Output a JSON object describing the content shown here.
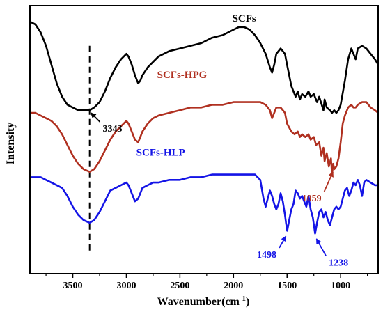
{
  "chart_data": {
    "type": "line",
    "title": "",
    "xlabel": "Wavenumber(cm",
    "xlabel_superscript": "-1",
    "xlabel_close": ")",
    "ylabel": "Intensity",
    "xlim": [
      3900,
      650
    ],
    "x_reversed": true,
    "ylim": [
      0,
      100
    ],
    "yticks_shown": false,
    "xticks": [
      3500,
      3000,
      2500,
      2000,
      1500,
      1000
    ],
    "xtick_labels": [
      "3500",
      "3000",
      "2500",
      "2000",
      "1500",
      "1000"
    ],
    "grid": false,
    "legend": "none",
    "series": [
      {
        "name": "SCFs",
        "color": "#000000",
        "x": [
          3900,
          3850,
          3800,
          3750,
          3700,
          3650,
          3600,
          3550,
          3500,
          3450,
          3400,
          3343,
          3300,
          3250,
          3200,
          3150,
          3100,
          3050,
          3000,
          2980,
          2950,
          2920,
          2890,
          2870,
          2850,
          2800,
          2750,
          2700,
          2600,
          2500,
          2400,
          2300,
          2200,
          2100,
          2000,
          1950,
          1900,
          1850,
          1800,
          1750,
          1700,
          1660,
          1640,
          1620,
          1600,
          1560,
          1520,
          1500,
          1460,
          1420,
          1400,
          1380,
          1360,
          1330,
          1300,
          1280,
          1250,
          1220,
          1200,
          1160,
          1150,
          1130,
          1100,
          1080,
          1060,
          1040,
          1020,
          1000,
          960,
          930,
          900,
          880,
          860,
          840,
          800,
          760,
          720,
          680,
          650
        ],
        "y": [
          94,
          93,
          90,
          85,
          78,
          71,
          66,
          63,
          62,
          61,
          61,
          61,
          62,
          64,
          68,
          73,
          77,
          80,
          82,
          81,
          78,
          74,
          71,
          72,
          74,
          77,
          79,
          81,
          83,
          84,
          85,
          86,
          88,
          89,
          91,
          92,
          92,
          91,
          89,
          86,
          82,
          77,
          75,
          78,
          82,
          84,
          82,
          78,
          70,
          66,
          68,
          65,
          67,
          66,
          68,
          66,
          67,
          64,
          66,
          61,
          65,
          62,
          61,
          60,
          61,
          60,
          61,
          63,
          72,
          80,
          84,
          82,
          80,
          84,
          85,
          84,
          82,
          80,
          78
        ]
      },
      {
        "name": "SCFs-HPG",
        "color": "#b03020",
        "x": [
          3900,
          3850,
          3800,
          3750,
          3700,
          3650,
          3600,
          3550,
          3500,
          3450,
          3400,
          3343,
          3300,
          3250,
          3200,
          3150,
          3100,
          3050,
          3000,
          2980,
          2950,
          2920,
          2890,
          2870,
          2850,
          2800,
          2750,
          2700,
          2600,
          2500,
          2400,
          2300,
          2200,
          2100,
          2000,
          1900,
          1800,
          1750,
          1700,
          1660,
          1640,
          1620,
          1600,
          1560,
          1520,
          1500,
          1460,
          1430,
          1400,
          1380,
          1360,
          1330,
          1300,
          1280,
          1250,
          1230,
          1200,
          1180,
          1160,
          1150,
          1130,
          1110,
          1090,
          1080,
          1070,
          1059,
          1040,
          1020,
          1000,
          980,
          960,
          930,
          900,
          880,
          860,
          840,
          800,
          760,
          720,
          680,
          650
        ],
        "y": [
          60,
          60,
          59,
          58,
          57,
          55,
          52,
          48,
          44,
          41,
          39,
          38,
          39,
          42,
          46,
          50,
          53,
          55,
          57,
          56,
          53,
          50,
          49,
          51,
          53,
          56,
          58,
          59,
          60,
          61,
          62,
          62,
          63,
          63,
          64,
          64,
          64,
          64,
          63,
          61,
          58,
          60,
          62,
          62,
          60,
          56,
          53,
          52,
          53,
          51,
          52,
          51,
          52,
          50,
          51,
          48,
          49,
          44,
          47,
          42,
          45,
          40,
          43,
          37,
          41,
          39,
          40,
          43,
          49,
          56,
          59,
          62,
          63,
          62,
          62,
          63,
          64,
          64,
          62,
          61,
          60
        ]
      },
      {
        "name": "SCFs-HLP",
        "color": "#1414e6",
        "x": [
          3900,
          3850,
          3800,
          3750,
          3700,
          3650,
          3600,
          3550,
          3500,
          3450,
          3400,
          3343,
          3300,
          3250,
          3200,
          3150,
          3100,
          3050,
          3000,
          2980,
          2950,
          2920,
          2890,
          2870,
          2850,
          2800,
          2750,
          2700,
          2600,
          2500,
          2400,
          2300,
          2200,
          2100,
          2000,
          1900,
          1800,
          1750,
          1720,
          1700,
          1680,
          1660,
          1640,
          1620,
          1600,
          1580,
          1560,
          1540,
          1520,
          1510,
          1498,
          1480,
          1460,
          1440,
          1420,
          1400,
          1380,
          1360,
          1340,
          1320,
          1300,
          1280,
          1260,
          1238,
          1220,
          1200,
          1180,
          1160,
          1140,
          1120,
          1100,
          1080,
          1060,
          1040,
          1020,
          1000,
          980,
          960,
          940,
          920,
          900,
          880,
          860,
          840,
          820,
          800,
          780,
          760,
          720,
          680,
          650
        ],
        "y": [
          36,
          36,
          36,
          35,
          34,
          33,
          32,
          29,
          25,
          22,
          20,
          19,
          20,
          23,
          27,
          31,
          32,
          33,
          34,
          33,
          30,
          27,
          28,
          30,
          32,
          33,
          34,
          34,
          35,
          35,
          36,
          36,
          37,
          37,
          37,
          37,
          37,
          35,
          28,
          25,
          28,
          31,
          29,
          26,
          24,
          26,
          30,
          27,
          22,
          19,
          16,
          20,
          24,
          26,
          31,
          30,
          28,
          29,
          27,
          25,
          29,
          24,
          21,
          15,
          19,
          23,
          24,
          21,
          23,
          20,
          18,
          21,
          24,
          25,
          24,
          25,
          28,
          31,
          32,
          29,
          31,
          34,
          33,
          35,
          33,
          29,
          34,
          35,
          34,
          33,
          33
        ]
      }
    ],
    "series_labels": [
      {
        "text": "SCFs",
        "x": 1900,
        "y": 94,
        "color": "#000000"
      },
      {
        "text": "SCFs-HPG",
        "x": 2480,
        "y": 73,
        "color": "#b03020"
      },
      {
        "text": "SCFs-HLP",
        "x": 2680,
        "y": 44,
        "color": "#1414e6"
      }
    ],
    "annotations": [
      {
        "text": "3343",
        "x": 3343,
        "y": 61,
        "tx": 3130,
        "ty": 53,
        "color": "#000000"
      },
      {
        "text": "1059",
        "x": 1059,
        "y": 39,
        "tx": 1270,
        "ty": 27,
        "color": "#b03020"
      },
      {
        "text": "1498",
        "x": 1498,
        "y": 15,
        "tx": 1690,
        "ty": 6,
        "color": "#1414e6"
      },
      {
        "text": "1238",
        "x": 1238,
        "y": 14,
        "tx": 1020,
        "ty": 3,
        "color": "#1414e6"
      }
    ],
    "reference_line": {
      "x": 3343,
      "style": "dashed",
      "y_from": 0,
      "y_to": 85
    }
  }
}
